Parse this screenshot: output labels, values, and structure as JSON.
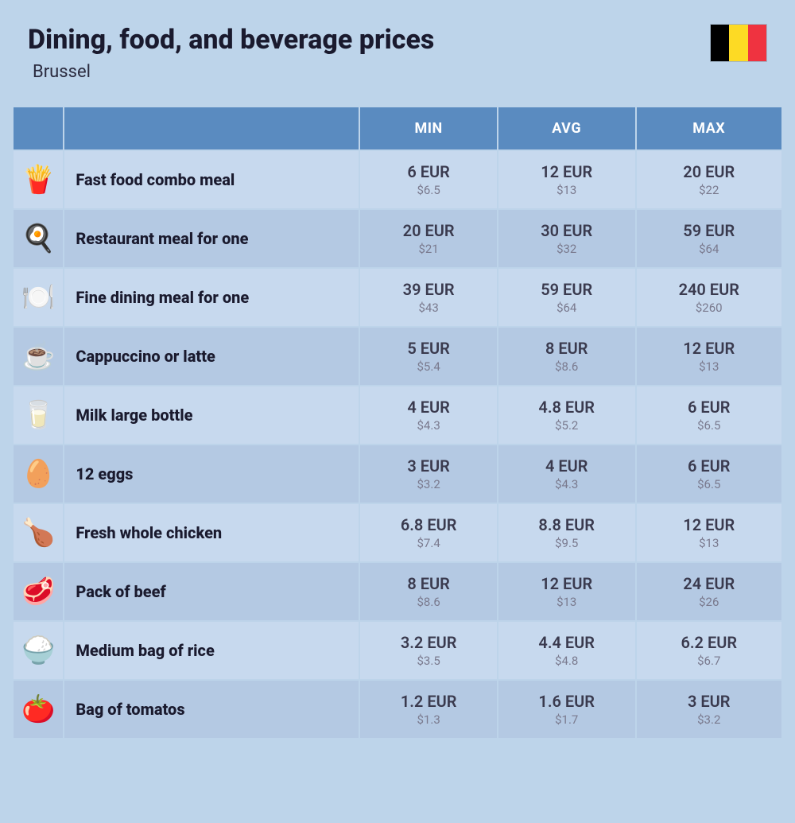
{
  "header": {
    "title": "Dining, food, and beverage prices",
    "subtitle": "Brussel",
    "flag_colors": [
      "#000000",
      "#FDDA24",
      "#EF3340"
    ]
  },
  "table": {
    "columns": [
      "MIN",
      "AVG",
      "MAX"
    ],
    "currency_primary": "EUR",
    "currency_secondary_prefix": "$",
    "row_colors": {
      "odd": "#c7d9ee",
      "even": "#b4c9e3"
    },
    "header_bg": "#5a8bc0",
    "header_text": "#ffffff",
    "background": "#bdd4ea",
    "rows": [
      {
        "icon": "🍟",
        "label": "Fast food combo meal",
        "min_eur": "6",
        "min_usd": "6.5",
        "avg_eur": "12",
        "avg_usd": "13",
        "max_eur": "20",
        "max_usd": "22"
      },
      {
        "icon": "🍳",
        "label": "Restaurant meal for one",
        "min_eur": "20",
        "min_usd": "21",
        "avg_eur": "30",
        "avg_usd": "32",
        "max_eur": "59",
        "max_usd": "64"
      },
      {
        "icon": "🍽️",
        "label": "Fine dining meal for one",
        "min_eur": "39",
        "min_usd": "43",
        "avg_eur": "59",
        "avg_usd": "64",
        "max_eur": "240",
        "max_usd": "260"
      },
      {
        "icon": "☕",
        "label": "Cappuccino or latte",
        "min_eur": "5",
        "min_usd": "5.4",
        "avg_eur": "8",
        "avg_usd": "8.6",
        "max_eur": "12",
        "max_usd": "13"
      },
      {
        "icon": "🥛",
        "label": "Milk large bottle",
        "min_eur": "4",
        "min_usd": "4.3",
        "avg_eur": "4.8",
        "avg_usd": "5.2",
        "max_eur": "6",
        "max_usd": "6.5"
      },
      {
        "icon": "🥚",
        "label": "12 eggs",
        "min_eur": "3",
        "min_usd": "3.2",
        "avg_eur": "4",
        "avg_usd": "4.3",
        "max_eur": "6",
        "max_usd": "6.5"
      },
      {
        "icon": "🍗",
        "label": "Fresh whole chicken",
        "min_eur": "6.8",
        "min_usd": "7.4",
        "avg_eur": "8.8",
        "avg_usd": "9.5",
        "max_eur": "12",
        "max_usd": "13"
      },
      {
        "icon": "🥩",
        "label": "Pack of beef",
        "min_eur": "8",
        "min_usd": "8.6",
        "avg_eur": "12",
        "avg_usd": "13",
        "max_eur": "24",
        "max_usd": "26"
      },
      {
        "icon": "🍚",
        "label": "Medium bag of rice",
        "min_eur": "3.2",
        "min_usd": "3.5",
        "avg_eur": "4.4",
        "avg_usd": "4.8",
        "max_eur": "6.2",
        "max_usd": "6.7"
      },
      {
        "icon": "🍅",
        "label": "Bag of tomatos",
        "min_eur": "1.2",
        "min_usd": "1.3",
        "avg_eur": "1.6",
        "avg_usd": "1.7",
        "max_eur": "3",
        "max_usd": "3.2"
      }
    ]
  }
}
